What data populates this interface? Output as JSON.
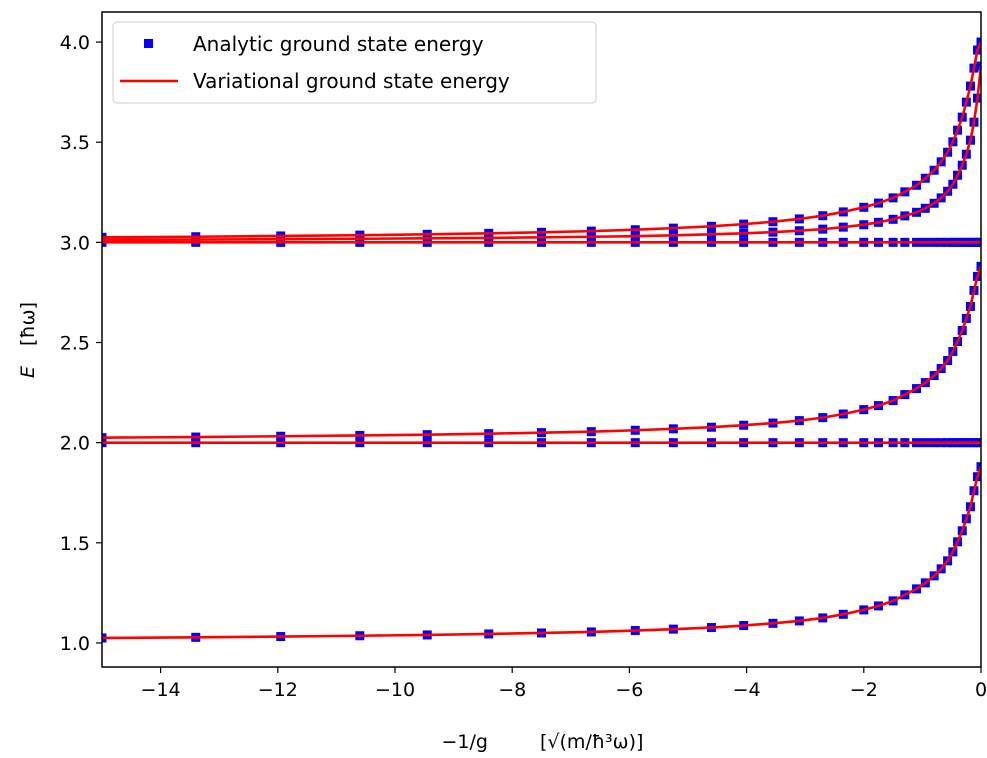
{
  "chart_data": {
    "type": "line",
    "xlabel": "−1/g",
    "xlabel_unit": "[√(m/ħ³ω)]",
    "ylabel": "E",
    "ylabel_unit": "[ħω]",
    "xlim": [
      -15,
      0
    ],
    "ylim": [
      0.88,
      4.15
    ],
    "x_ticks": [
      -14,
      -12,
      -10,
      -8,
      -6,
      -4,
      -2,
      0
    ],
    "x_tick_labels": [
      "−14",
      "−12",
      "−10",
      "−8",
      "−6",
      "−4",
      "−2",
      "0"
    ],
    "y_ticks": [
      1.0,
      1.5,
      2.0,
      2.5,
      3.0,
      3.5,
      4.0
    ],
    "y_tick_labels": [
      "1.0",
      "1.5",
      "2.0",
      "2.5",
      "3.0",
      "3.5",
      "4.0"
    ],
    "grid": false,
    "legend_position": "top-left",
    "legend": [
      {
        "label": "Analytic ground state energy",
        "marker": "square",
        "color": "#0000ff"
      },
      {
        "label": "Variational ground state energy",
        "marker": "line",
        "color": "#ff0000"
      }
    ],
    "marker_x": [
      -15.0,
      -13.4,
      -11.95,
      -10.6,
      -9.45,
      -8.4,
      -7.5,
      -6.65,
      -5.9,
      -5.25,
      -4.6,
      -4.05,
      -3.55,
      -3.1,
      -2.7,
      -2.35,
      -2.0,
      -1.75,
      -1.5,
      -1.3,
      -1.1,
      -0.95,
      -0.8,
      -0.68,
      -0.57,
      -0.48,
      -0.4,
      -0.32,
      -0.25,
      -0.18,
      -0.12,
      -0.06,
      0.0
    ],
    "series": [
      {
        "name": "Analytic ground state energy",
        "role": "markers",
        "color": "#0000ff",
        "level": 1,
        "flat": false,
        "values": [
          1.025,
          1.028,
          1.032,
          1.036,
          1.04,
          1.045,
          1.05,
          1.055,
          1.062,
          1.069,
          1.077,
          1.087,
          1.098,
          1.11,
          1.125,
          1.143,
          1.165,
          1.185,
          1.21,
          1.24,
          1.27,
          1.3,
          1.335,
          1.37,
          1.41,
          1.455,
          1.505,
          1.56,
          1.62,
          1.68,
          1.76,
          1.83,
          1.88
        ]
      },
      {
        "name": "Analytic ground state energy",
        "role": "markers",
        "color": "#0000ff",
        "level": 2,
        "flat": true,
        "values": [
          2.0
        ]
      },
      {
        "name": "Analytic ground state energy",
        "role": "markers",
        "color": "#0000ff",
        "level": 2,
        "flat": false,
        "values": [
          2.025,
          2.028,
          2.032,
          2.036,
          2.04,
          2.045,
          2.05,
          2.055,
          2.062,
          2.069,
          2.077,
          2.087,
          2.098,
          2.11,
          2.125,
          2.143,
          2.165,
          2.185,
          2.21,
          2.24,
          2.27,
          2.3,
          2.335,
          2.37,
          2.41,
          2.455,
          2.505,
          2.56,
          2.62,
          2.68,
          2.76,
          2.83,
          2.88
        ]
      },
      {
        "name": "Analytic ground state energy",
        "role": "markers",
        "color": "#0000ff",
        "level": 3,
        "flat": true,
        "values": [
          3.0
        ]
      },
      {
        "name": "Analytic ground state energy",
        "role": "markers",
        "color": "#0000ff",
        "level": 3,
        "flat": false,
        "values": [
          3.012,
          3.014,
          3.016,
          3.018,
          3.02,
          3.022,
          3.025,
          3.028,
          3.031,
          3.035,
          3.04,
          3.045,
          3.051,
          3.058,
          3.066,
          3.076,
          3.088,
          3.1,
          3.115,
          3.132,
          3.15,
          3.17,
          3.195,
          3.222,
          3.255,
          3.29,
          3.335,
          3.385,
          3.44,
          3.51,
          3.6,
          3.72,
          3.88
        ]
      },
      {
        "name": "Analytic ground state energy",
        "role": "markers",
        "color": "#0000ff",
        "level": 3,
        "flat": false,
        "values": [
          3.025,
          3.028,
          3.032,
          3.036,
          3.04,
          3.045,
          3.05,
          3.056,
          3.063,
          3.071,
          3.08,
          3.091,
          3.103,
          3.117,
          3.133,
          3.152,
          3.175,
          3.196,
          3.222,
          3.252,
          3.285,
          3.32,
          3.36,
          3.402,
          3.45,
          3.502,
          3.56,
          3.625,
          3.7,
          3.78,
          3.87,
          3.96,
          4.0
        ]
      },
      {
        "name": "Variational ground state energy",
        "role": "line",
        "color": "#ff0000",
        "level": 1,
        "flat": false,
        "values": [
          1.025,
          1.028,
          1.032,
          1.036,
          1.04,
          1.045,
          1.05,
          1.055,
          1.062,
          1.069,
          1.077,
          1.087,
          1.098,
          1.11,
          1.125,
          1.143,
          1.165,
          1.185,
          1.21,
          1.24,
          1.27,
          1.3,
          1.335,
          1.37,
          1.41,
          1.455,
          1.505,
          1.56,
          1.62,
          1.68,
          1.76,
          1.83,
          1.88
        ]
      },
      {
        "name": "Variational ground state energy",
        "role": "line",
        "color": "#ff0000",
        "level": 2,
        "flat": true,
        "values": [
          2.0
        ]
      },
      {
        "name": "Variational ground state energy",
        "role": "line",
        "color": "#ff0000",
        "level": 2,
        "flat": false,
        "values": [
          2.025,
          2.028,
          2.032,
          2.036,
          2.04,
          2.045,
          2.05,
          2.055,
          2.062,
          2.069,
          2.077,
          2.087,
          2.098,
          2.11,
          2.125,
          2.143,
          2.165,
          2.185,
          2.21,
          2.24,
          2.27,
          2.3,
          2.335,
          2.37,
          2.41,
          2.455,
          2.505,
          2.56,
          2.62,
          2.68,
          2.76,
          2.83,
          2.88
        ]
      },
      {
        "name": "Variational ground state energy",
        "role": "line",
        "color": "#ff0000",
        "level": 3,
        "flat": true,
        "values": [
          3.0
        ]
      },
      {
        "name": "Variational ground state energy",
        "role": "line",
        "color": "#ff0000",
        "level": 3,
        "flat": false,
        "values": [
          3.012,
          3.014,
          3.016,
          3.018,
          3.02,
          3.022,
          3.025,
          3.028,
          3.031,
          3.035,
          3.04,
          3.045,
          3.051,
          3.058,
          3.066,
          3.076,
          3.088,
          3.1,
          3.115,
          3.132,
          3.15,
          3.17,
          3.195,
          3.222,
          3.255,
          3.29,
          3.335,
          3.385,
          3.44,
          3.51,
          3.6,
          3.72,
          3.88
        ]
      },
      {
        "name": "Variational ground state energy",
        "role": "line",
        "color": "#ff0000",
        "level": 3,
        "flat": false,
        "values": [
          3.025,
          3.028,
          3.032,
          3.036,
          3.04,
          3.045,
          3.05,
          3.056,
          3.063,
          3.071,
          3.08,
          3.091,
          3.103,
          3.117,
          3.133,
          3.152,
          3.175,
          3.196,
          3.222,
          3.252,
          3.285,
          3.32,
          3.36,
          3.402,
          3.45,
          3.502,
          3.56,
          3.625,
          3.7,
          3.78,
          3.87,
          3.96,
          4.0
        ]
      }
    ]
  }
}
